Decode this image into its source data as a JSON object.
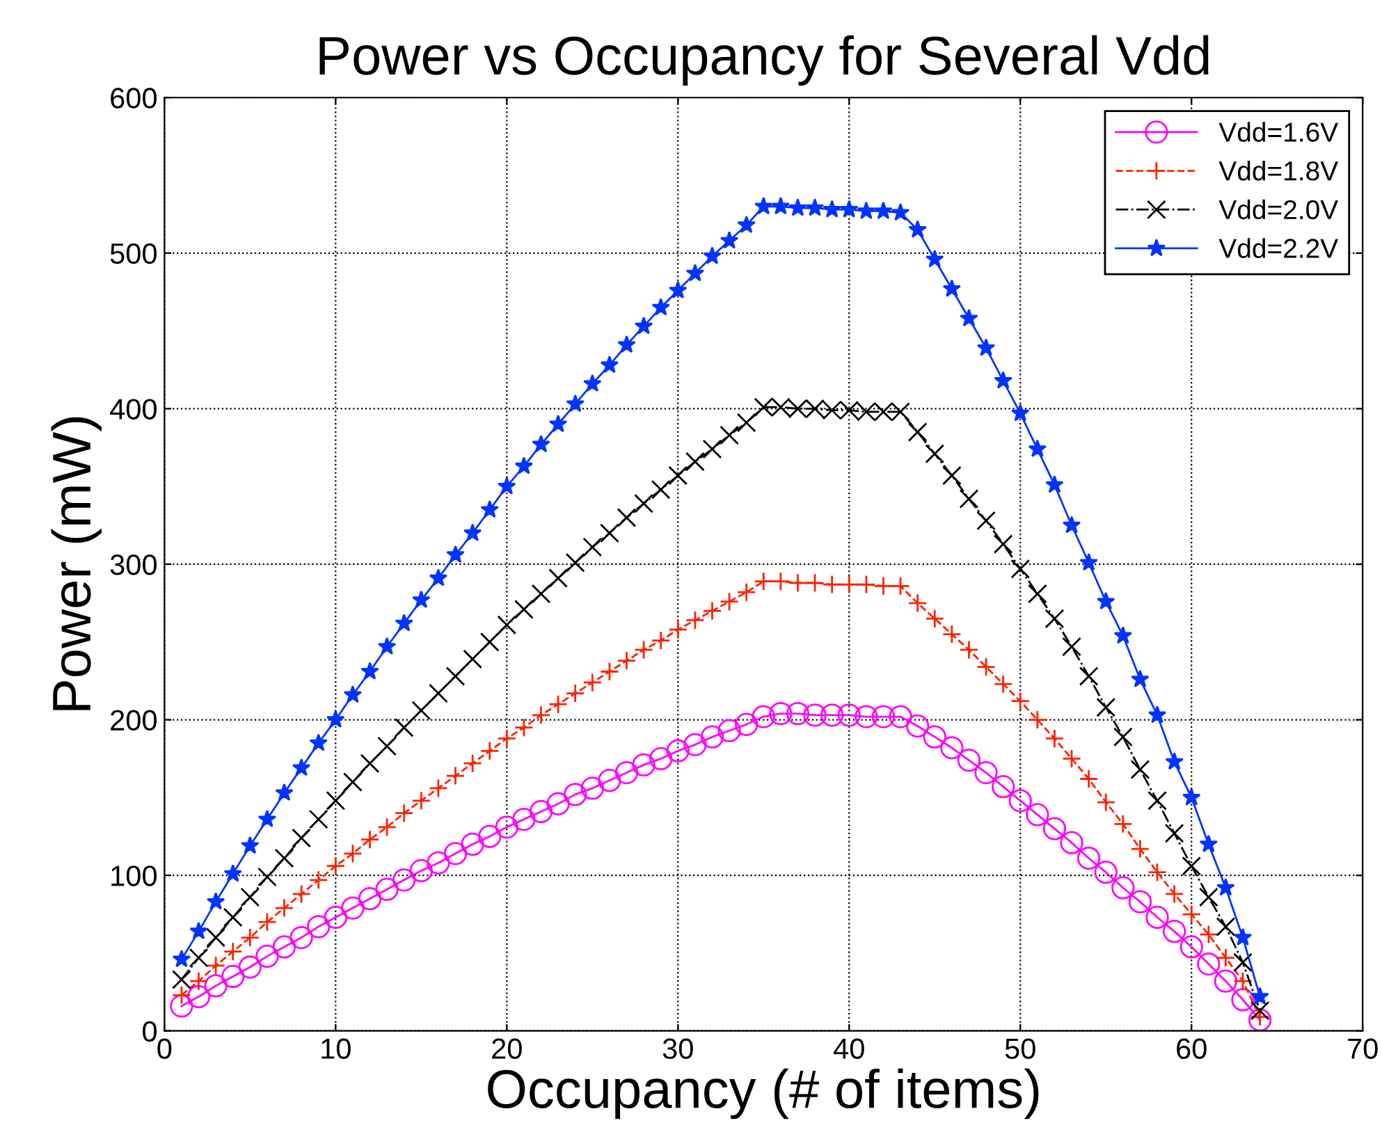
{
  "chart_data": {
    "type": "line",
    "title": "Power vs Occupancy for Several Vdd",
    "xlabel": "Occupancy (# of items)",
    "ylabel": "Power (mW)",
    "x": [
      1,
      2,
      3,
      4,
      5,
      6,
      7,
      8,
      9,
      10,
      11,
      12,
      13,
      14,
      15,
      16,
      17,
      18,
      19,
      20,
      21,
      22,
      23,
      24,
      25,
      26,
      27,
      28,
      29,
      30,
      31,
      32,
      33,
      34,
      35,
      36,
      37,
      38,
      39,
      40,
      41,
      42,
      43,
      44,
      45,
      46,
      47,
      48,
      49,
      50,
      51,
      52,
      53,
      54,
      55,
      56,
      57,
      58,
      59,
      60,
      61,
      62,
      63,
      64
    ],
    "series": [
      {
        "name": "Vdd=1.6V",
        "color": "#ff00ff",
        "marker": "circle",
        "line_style": "solid",
        "values": [
          16,
          22,
          29,
          35,
          41,
          48,
          54,
          60,
          67,
          73,
          79,
          85,
          91,
          97,
          103,
          108,
          114,
          120,
          125,
          131,
          136,
          141,
          146,
          152,
          156,
          161,
          166,
          171,
          175,
          180,
          184,
          189,
          193,
          197,
          202,
          204,
          204,
          203,
          203,
          203,
          202,
          202,
          202,
          196,
          189,
          182,
          174,
          166,
          157,
          148,
          139,
          130,
          121,
          111,
          102,
          92,
          83,
          73,
          64,
          54,
          43,
          32,
          20,
          7
        ]
      },
      {
        "name": "Vdd=1.8V",
        "color": "#ff2000",
        "marker": "plus",
        "line_style": "dashed",
        "values": [
          23,
          32,
          42,
          51,
          60,
          70,
          79,
          88,
          97,
          106,
          114,
          123,
          131,
          140,
          148,
          156,
          164,
          172,
          180,
          188,
          195,
          203,
          210,
          217,
          224,
          231,
          238,
          245,
          251,
          258,
          264,
          270,
          276,
          282,
          289,
          289,
          288,
          288,
          287,
          287,
          287,
          286,
          286,
          275,
          265,
          255,
          245,
          234,
          223,
          212,
          200,
          188,
          175,
          162,
          147,
          133,
          117,
          102,
          88,
          75,
          62,
          47,
          32,
          9
        ]
      },
      {
        "name": "Vdd=2.0V",
        "color": "#000000",
        "marker": "cross",
        "line_style": "dashdot",
        "values": [
          33,
          47,
          60,
          73,
          86,
          99,
          111,
          124,
          136,
          148,
          160,
          172,
          183,
          195,
          206,
          217,
          228,
          239,
          250,
          261,
          271,
          281,
          291,
          301,
          311,
          320,
          330,
          339,
          348,
          357,
          366,
          374,
          383,
          391,
          401,
          401,
          400,
          400,
          399,
          399,
          398,
          398,
          398,
          385,
          371,
          357,
          342,
          328,
          313,
          297,
          281,
          265,
          247,
          228,
          208,
          189,
          168,
          148,
          127,
          106,
          86,
          67,
          44,
          13
        ]
      },
      {
        "name": "Vdd=2.2V",
        "color": "#0033ff",
        "marker": "star",
        "line_style": "solid",
        "values": [
          46,
          64,
          83,
          101,
          119,
          136,
          153,
          169,
          185,
          200,
          216,
          231,
          247,
          262,
          277,
          291,
          306,
          320,
          335,
          350,
          363,
          377,
          390,
          403,
          416,
          428,
          441,
          453,
          465,
          476,
          487,
          498,
          508,
          518,
          530,
          530,
          529,
          529,
          528,
          528,
          527,
          527,
          526,
          515,
          496,
          477,
          458,
          439,
          418,
          397,
          374,
          351,
          325,
          301,
          276,
          254,
          226,
          203,
          173,
          150,
          120,
          92,
          60,
          22
        ]
      }
    ],
    "xlim": [
      0,
      70
    ],
    "xticks": [
      0,
      10,
      20,
      30,
      40,
      50,
      60,
      70
    ],
    "ylim": [
      0,
      600
    ],
    "yticks": [
      0,
      100,
      200,
      300,
      400,
      500,
      600
    ],
    "grid": true,
    "legend": "top right"
  }
}
